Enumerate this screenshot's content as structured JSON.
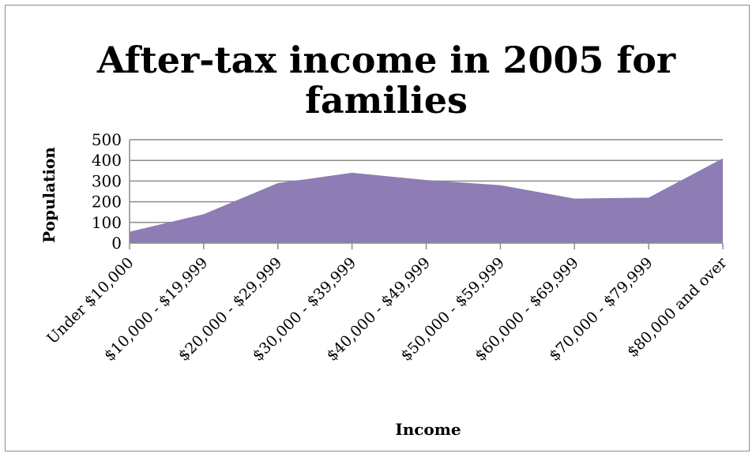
{
  "chart_data": {
    "type": "area",
    "title": "After-tax income  in 2005 for families",
    "title_lines": [
      "After-tax income  in 2005 for",
      "families"
    ],
    "xlabel": "Income",
    "ylabel": "Population",
    "categories": [
      "Under $10,000",
      "$10,000 - $19,999",
      "$20,000 - $29,999",
      "$30,000 - $39,999",
      "$40,000 - $49,999",
      "$50,000 - $59,999",
      "$60,000 - $69,999",
      "$70,000 - $79,999",
      "$80,000 and over"
    ],
    "series": [
      {
        "values": [
          55,
          140,
          290,
          340,
          305,
          280,
          215,
          220,
          410
        ]
      }
    ],
    "ylim": [
      0,
      500
    ],
    "yticks": [
      "0",
      "100",
      "200",
      "300",
      "400",
      "500"
    ],
    "grid": true,
    "legend": "none",
    "colors": {
      "area": "#8e7cb5",
      "grid": "#8c8c8c",
      "axis": "#8c8c8c"
    }
  }
}
